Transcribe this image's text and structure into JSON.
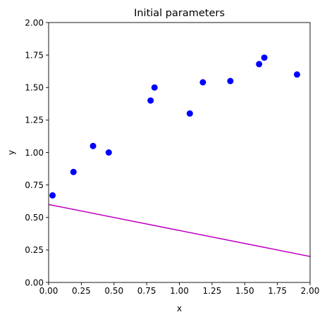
{
  "chart_data": {
    "type": "scatter",
    "title": "Initial parameters",
    "xlabel": "x",
    "ylabel": "y",
    "xlim": [
      0,
      2
    ],
    "ylim": [
      0,
      2
    ],
    "grid": false,
    "x_ticks": [
      "0.00",
      "0.25",
      "0.50",
      "0.75",
      "1.00",
      "1.25",
      "1.50",
      "1.75",
      "2.00"
    ],
    "y_ticks": [
      "0.00",
      "0.25",
      "0.50",
      "0.75",
      "1.00",
      "1.25",
      "1.50",
      "1.75",
      "2.00"
    ],
    "scatter": {
      "color": "#0000ff",
      "points": [
        {
          "x": 0.03,
          "y": 0.67
        },
        {
          "x": 0.19,
          "y": 0.85
        },
        {
          "x": 0.34,
          "y": 1.05
        },
        {
          "x": 0.46,
          "y": 1.0
        },
        {
          "x": 0.78,
          "y": 1.4
        },
        {
          "x": 0.81,
          "y": 1.5
        },
        {
          "x": 1.08,
          "y": 1.3
        },
        {
          "x": 1.18,
          "y": 1.54
        },
        {
          "x": 1.39,
          "y": 1.55
        },
        {
          "x": 1.61,
          "y": 1.68
        },
        {
          "x": 1.65,
          "y": 1.73
        },
        {
          "x": 1.9,
          "y": 1.6
        }
      ]
    },
    "line": {
      "color": "#bf00bf",
      "x": [
        0,
        2
      ],
      "y": [
        0.6,
        0.2
      ]
    }
  }
}
